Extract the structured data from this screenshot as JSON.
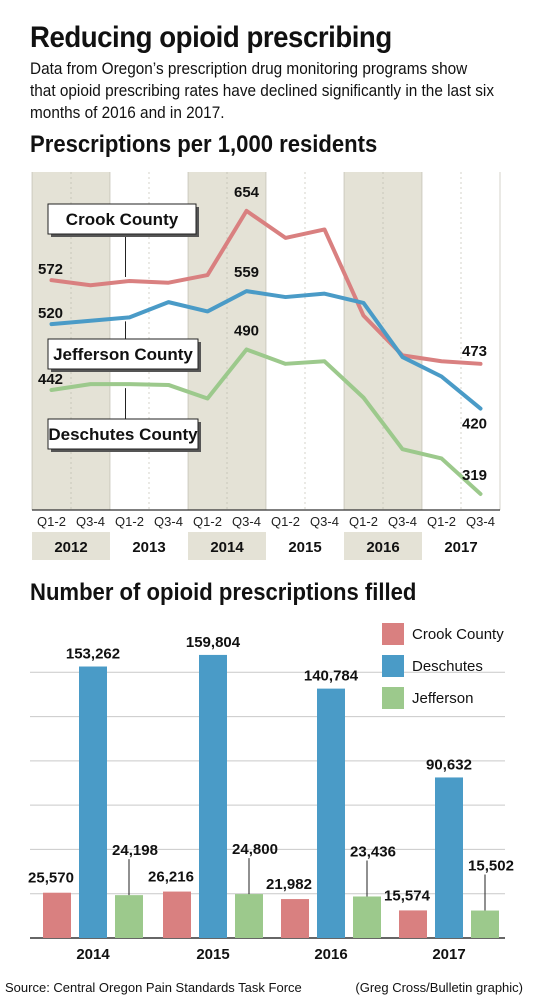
{
  "header": {
    "title": "Reducing opioid prescribing",
    "subtitle": "Data from Oregon’s prescription drug monitoring programs show that opioid prescribing rates have declined significantly in the last six months of 2016 and in 2017."
  },
  "footer": {
    "source": "Source: Central Oregon Pain Standards Task Force",
    "credit": "(Greg Cross/Bulletin graphic)"
  },
  "colors": {
    "crook": "#d98080",
    "deschutes": "#4a9bc7",
    "jefferson": "#9cc98c",
    "shade": "#e4e2d6",
    "axis": "#333333"
  },
  "chart_data": [
    {
      "type": "line",
      "title": "Prescriptions per 1,000 residents",
      "x": [
        "Q1-2",
        "Q3-4",
        "Q1-2",
        "Q3-4",
        "Q1-2",
        "Q3-4",
        "Q1-2",
        "Q3-4",
        "Q1-2",
        "Q3-4",
        "Q1-2",
        "Q3-4"
      ],
      "years": [
        "2012",
        "2013",
        "2014",
        "2015",
        "2016",
        "2017"
      ],
      "ylim": [
        300,
        700
      ],
      "grid": false,
      "series": [
        {
          "name": "Crook County",
          "values": [
            572,
            566,
            571,
            569,
            578,
            654,
            622,
            632,
            530,
            483,
            476,
            473
          ],
          "labels": [
            "572",
            "654",
            "473"
          ]
        },
        {
          "name": "Jefferson County",
          "values": [
            520,
            524,
            528,
            546,
            535,
            559,
            552,
            556,
            545,
            481,
            458,
            420
          ],
          "labels": [
            "520",
            "559",
            "420"
          ]
        },
        {
          "name": "Deschutes County",
          "values": [
            442,
            449,
            449,
            448,
            432,
            490,
            473,
            476,
            433,
            372,
            361,
            319
          ],
          "labels": [
            "442",
            "490",
            "319"
          ]
        }
      ]
    },
    {
      "type": "bar",
      "title": "Number of opioid prescriptions filled",
      "categories": [
        "2014",
        "2015",
        "2016",
        "2017"
      ],
      "ylim": [
        0,
        175000
      ],
      "grid": true,
      "legend": "top-right",
      "series": [
        {
          "name": "Crook County",
          "values": [
            25570,
            26216,
            21982,
            15574
          ],
          "labels": [
            "25,570",
            "26,216",
            "21,982",
            "15,574"
          ]
        },
        {
          "name": "Deschutes",
          "values": [
            153262,
            159804,
            140784,
            90632
          ],
          "labels": [
            "153,262",
            "159,804",
            "140,784",
            "90,632"
          ]
        },
        {
          "name": "Jefferson",
          "values": [
            24198,
            24800,
            23436,
            15502
          ],
          "labels": [
            "24,198",
            "24,800",
            "23,436",
            "15,502"
          ]
        }
      ]
    }
  ]
}
